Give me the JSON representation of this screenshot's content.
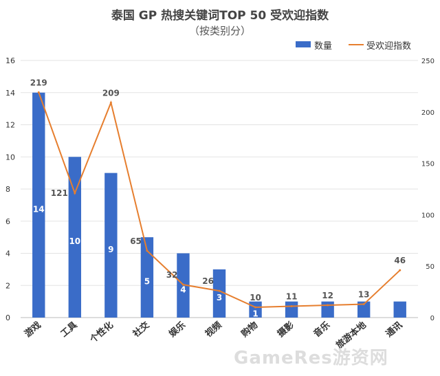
{
  "chart_data": {
    "type": "bar",
    "title": "泰国 GP 热搜关键词TOP 50 受欢迎指数",
    "subtitle": "（按类别分）",
    "categories": [
      "游戏",
      "工具",
      "个性化",
      "社交",
      "娱乐",
      "视频",
      "购物",
      "摄影",
      "音乐",
      "旅游本地",
      "通讯"
    ],
    "series": [
      {
        "name": "数量",
        "type": "bar",
        "axis": "left",
        "color": "#3a6cc8",
        "values": [
          14,
          10,
          9,
          5,
          4,
          3,
          1,
          1,
          1,
          1,
          1
        ],
        "bar_labels": [
          "14",
          "10",
          "9",
          "5",
          "4",
          "3",
          "1",
          "",
          "",
          "",
          ""
        ]
      },
      {
        "name": "受欢迎指数",
        "type": "line",
        "axis": "right",
        "color": "#e67e2e",
        "values": [
          219,
          121,
          209,
          65,
          32,
          26,
          10,
          11,
          12,
          13,
          46
        ],
        "point_labels": [
          "219",
          "121",
          "209",
          "65",
          "32",
          "26",
          "10",
          "11",
          "12",
          "13",
          "46"
        ]
      }
    ],
    "y_left": {
      "min": 0,
      "max": 16,
      "ticks": [
        "0",
        "2",
        "4",
        "6",
        "8",
        "10",
        "12",
        "14",
        "16"
      ]
    },
    "y_right": {
      "min": 0,
      "max": 250,
      "ticks": [
        "0",
        "50",
        "100",
        "150",
        "200",
        "250"
      ]
    },
    "grid": true,
    "legend_position": "top-right"
  },
  "watermark": "GameRes游资网"
}
